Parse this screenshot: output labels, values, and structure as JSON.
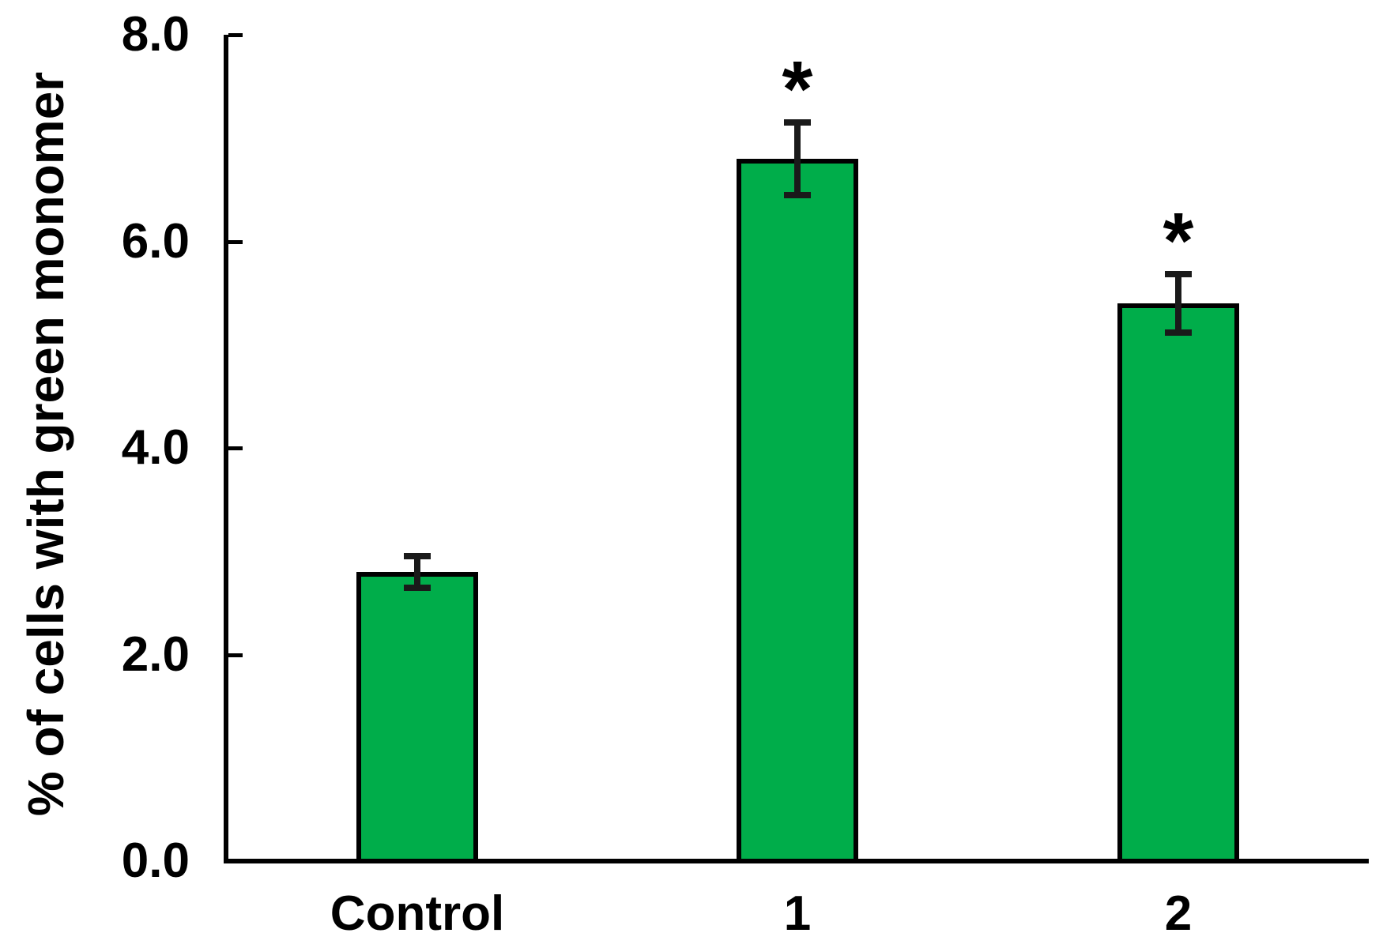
{
  "chart_data": {
    "type": "bar",
    "title": "",
    "ylabel": "% of cells with green monomer",
    "xlabel": "",
    "categories": [
      "Control",
      "1",
      "2"
    ],
    "values": [
      2.8,
      6.8,
      5.4
    ],
    "error_bars": [
      0.15,
      0.35,
      0.28
    ],
    "significance_markers": [
      "",
      "*",
      "*"
    ],
    "yticks": [
      {
        "value": 0,
        "label": "0.0"
      },
      {
        "value": 2,
        "label": "2.0"
      },
      {
        "value": 4,
        "label": "4.0"
      },
      {
        "value": 6,
        "label": "6.0"
      },
      {
        "value": 8,
        "label": "8.0"
      }
    ],
    "ylim": [
      0,
      8
    ],
    "grid": false,
    "legend": false,
    "bar_fill_color": "#00ad4a",
    "bar_border_color": "#000000",
    "axis_color": "#000000",
    "error_bar_color": "#1a1a1a"
  }
}
